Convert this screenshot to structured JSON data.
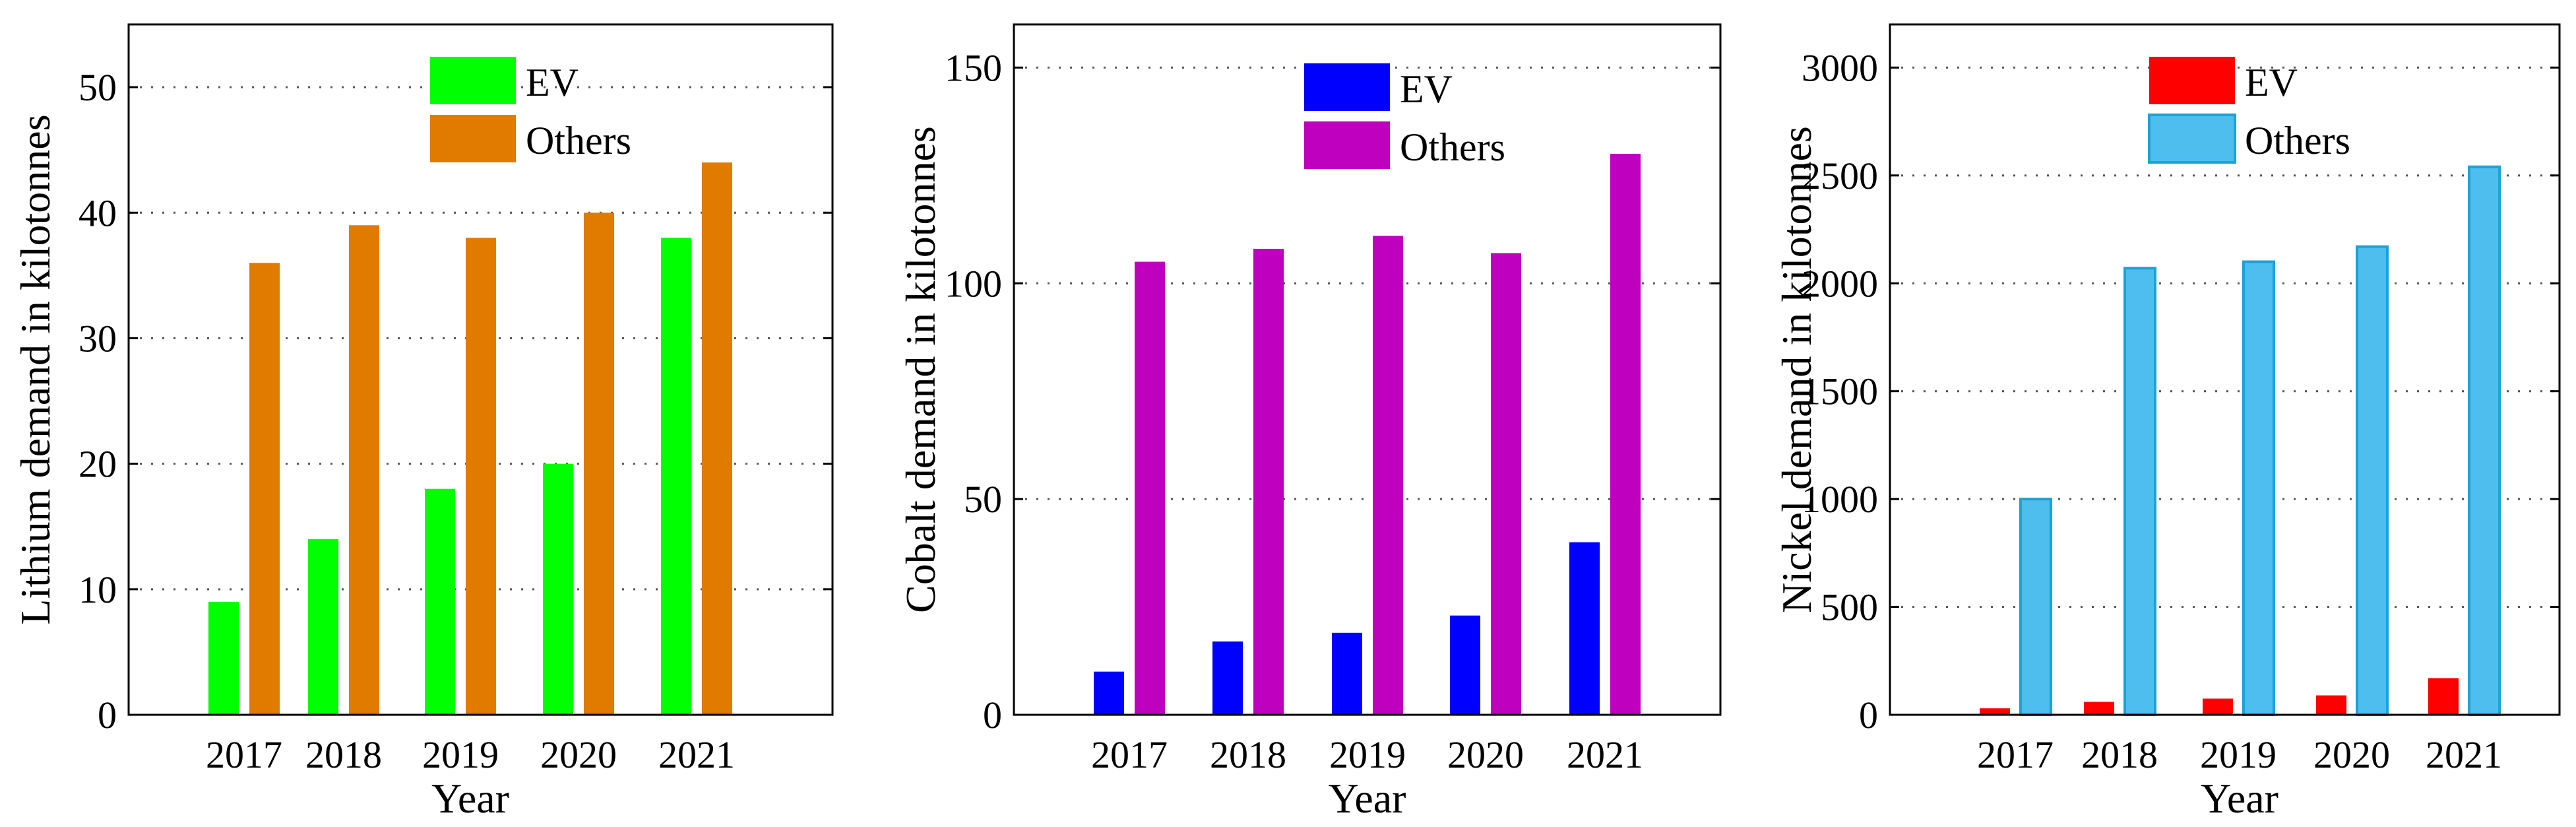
{
  "chart_data": [
    {
      "type": "bar",
      "title": "",
      "xlabel": "Year",
      "ylabel": "Lithium demand in kilotonnes",
      "categories": [
        "2017",
        "2018",
        "2019",
        "2020",
        "2021"
      ],
      "ylim": [
        0,
        55
      ],
      "yticks": [
        0,
        10,
        20,
        30,
        40,
        50
      ],
      "grid": true,
      "legend_position": "top-center",
      "series": [
        {
          "name": "EV",
          "color": "#00ff00",
          "values": [
            9,
            14,
            18,
            20,
            38
          ]
        },
        {
          "name": "Others",
          "color": "#e07b00",
          "values": [
            36,
            39,
            38,
            40,
            44
          ]
        }
      ]
    },
    {
      "type": "bar",
      "title": "",
      "xlabel": "Year",
      "ylabel": "Cobalt demand in kilotonnes",
      "categories": [
        "2017",
        "2018",
        "2019",
        "2020",
        "2021"
      ],
      "ylim": [
        0,
        160
      ],
      "yticks": [
        0,
        50,
        100,
        150
      ],
      "grid": true,
      "legend_position": "top-center",
      "series": [
        {
          "name": "EV",
          "color": "#0000ff",
          "values": [
            10,
            17,
            19,
            23,
            40
          ]
        },
        {
          "name": "Others",
          "color": "#bf00bf",
          "values": [
            105,
            108,
            111,
            107,
            130
          ]
        }
      ]
    },
    {
      "type": "bar",
      "title": "",
      "xlabel": "Year",
      "ylabel": "Nickel demand in kilotonnes",
      "categories": [
        "2017",
        "2018",
        "2019",
        "2020",
        "2021"
      ],
      "ylim": [
        0,
        3200
      ],
      "yticks": [
        0,
        500,
        1000,
        1500,
        2000,
        2500,
        3000
      ],
      "grid": true,
      "legend_position": "top-center",
      "series": [
        {
          "name": "EV",
          "color": "#ff0000",
          "values": [
            30,
            60,
            75,
            90,
            170
          ]
        },
        {
          "name": "Others",
          "color": "#4dbeee",
          "values": [
            1000,
            2070,
            2100,
            2170,
            2540
          ]
        }
      ]
    }
  ]
}
